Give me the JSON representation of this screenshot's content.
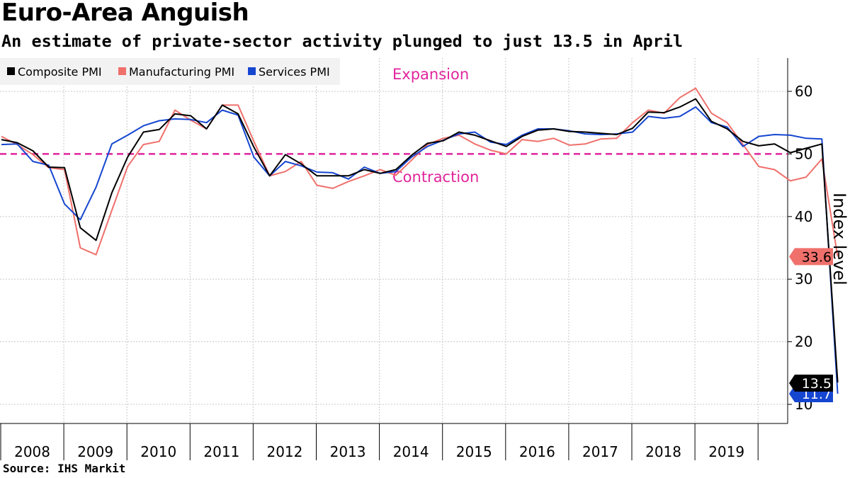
{
  "title": "Euro-Area Anguish",
  "subtitle": "An estimate of private-sector activity plunged to just 13.5 in April",
  "source": "Source: IHS Markit",
  "chart_data": {
    "type": "line",
    "title": "Euro-Area Anguish",
    "subtitle": "An estimate of private-sector activity plunged to just 13.5 in April",
    "ylabel": "Index level",
    "xlabel": "",
    "ylim": [
      6,
      65
    ],
    "yticks": [
      10,
      20,
      30,
      40,
      50,
      60
    ],
    "grid": true,
    "legend_position": "top-left",
    "x_start": "2008-01",
    "x_end": "2020-04",
    "x_step": "quarterly",
    "years": [
      "2008",
      "2009",
      "2010",
      "2011",
      "2012",
      "2013",
      "2014",
      "2015",
      "2016",
      "2017",
      "2018",
      "2019"
    ],
    "reference_line": {
      "value": 50,
      "color": "#e0259c",
      "style": "dashed"
    },
    "zone_labels": {
      "above": "Expansion",
      "below": "Contraction"
    },
    "series": [
      {
        "name": "Composite PMI",
        "color": "#000000",
        "end_label": "13.5",
        "values": [
          52.3,
          51.8,
          50.5,
          47.9,
          47.8,
          38.2,
          36.2,
          43.8,
          49.5,
          53.5,
          53.9,
          56.4,
          56.1,
          54.0,
          57.8,
          56.4,
          51.1,
          46.5,
          49.9,
          48.4,
          46.5,
          46.5,
          46.5,
          47.5,
          46.9,
          47.5,
          49.8,
          51.7,
          52.1,
          53.5,
          53.0,
          52.1,
          51.2,
          52.8,
          53.8,
          54.0,
          53.6,
          53.5,
          53.3,
          53.1,
          54.1,
          56.7,
          56.6,
          57.5,
          58.8,
          55.2,
          54.0,
          52.0,
          51.3,
          51.6,
          50.2,
          50.9,
          51.6,
          13.5
        ]
      },
      {
        "name": "Manufacturing PMI",
        "color": "#f0706c",
        "end_label": "33.6",
        "values": [
          52.8,
          51.5,
          49.9,
          47.8,
          47.5,
          35.0,
          33.9,
          41.0,
          48.0,
          51.5,
          52.0,
          57.0,
          55.4,
          54.0,
          57.8,
          57.8,
          52.0,
          46.5,
          47.2,
          48.8,
          45.0,
          44.5,
          45.6,
          46.5,
          47.5,
          46.6,
          49.0,
          51.5,
          52.5,
          53.0,
          51.6,
          50.6,
          50.0,
          52.3,
          52.0,
          52.5,
          51.4,
          51.6,
          52.4,
          52.5,
          55.0,
          57.0,
          56.5,
          59.0,
          60.5,
          56.5,
          55.0,
          51.5,
          48.0,
          47.5,
          45.7,
          46.3,
          49.2,
          33.6
        ]
      },
      {
        "name": "Services PMI",
        "color": "#1546d0",
        "end_label": "11.7",
        "values": [
          51.5,
          51.6,
          48.8,
          48.2,
          42.0,
          39.5,
          44.7,
          51.6,
          53.0,
          54.5,
          55.3,
          55.6,
          55.5,
          55.0,
          57.0,
          56.2,
          49.5,
          46.5,
          48.8,
          48.1,
          47.1,
          47.0,
          46.0,
          47.9,
          46.9,
          47.2,
          49.5,
          51.2,
          52.2,
          53.2,
          53.5,
          51.9,
          51.5,
          53.0,
          54.0,
          54.0,
          53.7,
          53.2,
          53.1,
          53.2,
          53.5,
          56.0,
          55.7,
          56.0,
          57.5,
          55.0,
          54.3,
          51.2,
          52.8,
          53.1,
          53.0,
          52.5,
          52.4,
          11.7
        ]
      }
    ]
  }
}
